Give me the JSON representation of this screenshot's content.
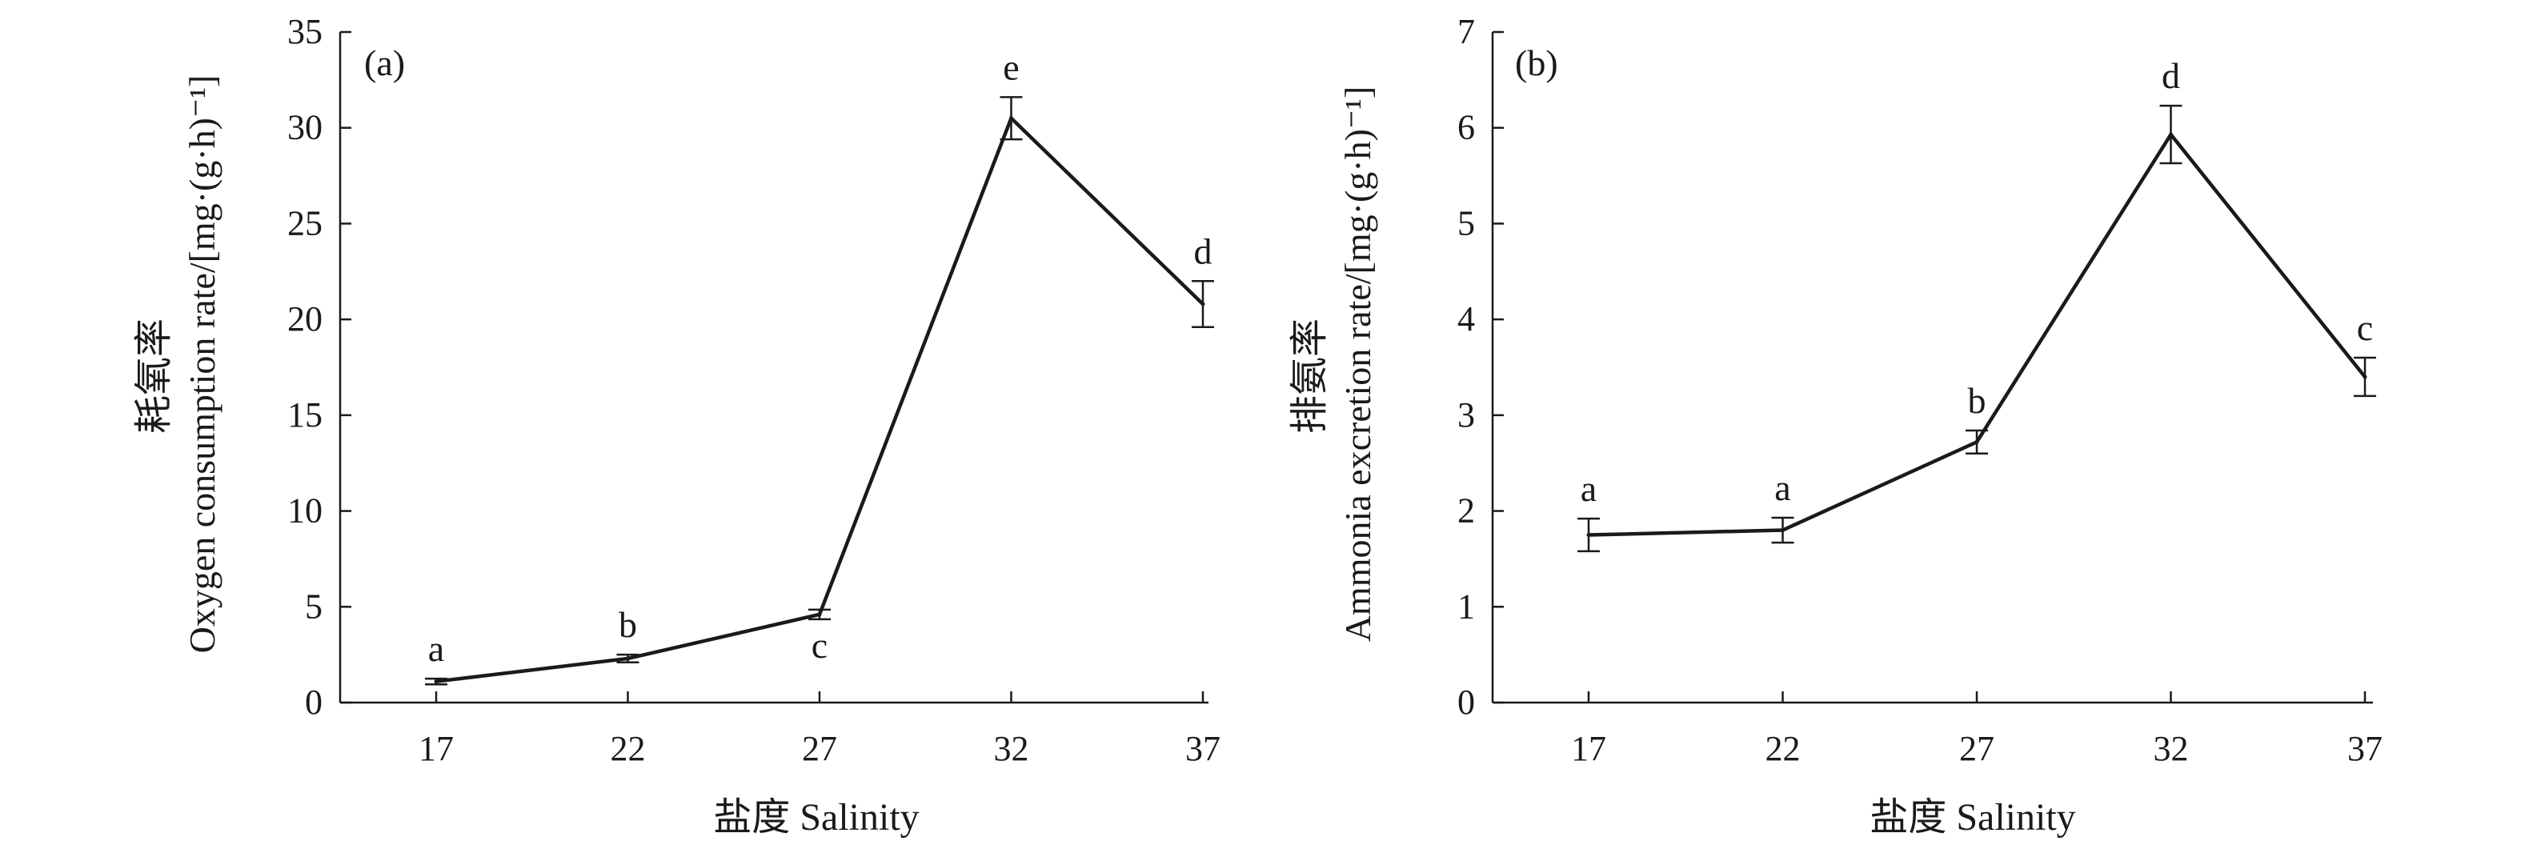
{
  "chart_data": [
    {
      "type": "line",
      "panel_label": "(a)",
      "xlabel": "盐度 Salinity",
      "ylabel_cn": "耗氧率",
      "ylabel_en": "Oxygen consumption rate/[mg·(g·h)⁻¹]",
      "x": [
        17,
        22,
        27,
        32,
        37
      ],
      "values": [
        1.1,
        2.3,
        4.6,
        30.5,
        20.8
      ],
      "errors": [
        0.15,
        0.2,
        0.25,
        1.1,
        1.2
      ],
      "letters": [
        "a",
        "b",
        "c",
        "e",
        "d"
      ],
      "letter_pos": [
        "above",
        "above",
        "below",
        "above",
        "above"
      ],
      "ylim": [
        0,
        35
      ],
      "yticks": [
        0,
        5,
        10,
        15,
        20,
        25,
        30,
        35
      ],
      "grid": false,
      "color": "#1a1a1a"
    },
    {
      "type": "line",
      "panel_label": "(b)",
      "xlabel": "盐度 Salinity",
      "ylabel_cn": "排氨率",
      "ylabel_en": "Ammonia excretion rate/[mg·(g·h)⁻¹]",
      "x": [
        17,
        22,
        27,
        32,
        37
      ],
      "values": [
        1.75,
        1.8,
        2.72,
        5.93,
        3.4
      ],
      "errors": [
        0.17,
        0.13,
        0.12,
        0.3,
        0.2
      ],
      "letters": [
        "a",
        "a",
        "b",
        "d",
        "c"
      ],
      "letter_pos": [
        "above",
        "above",
        "above",
        "above",
        "above"
      ],
      "ylim": [
        0,
        7
      ],
      "yticks": [
        0,
        1,
        2,
        3,
        4,
        5,
        6,
        7
      ],
      "grid": false,
      "color": "#1a1a1a"
    }
  ]
}
